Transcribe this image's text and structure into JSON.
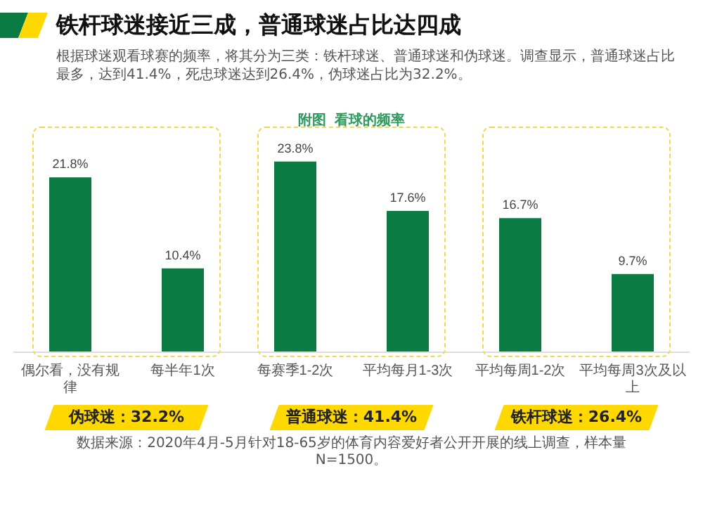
{
  "chart_data": {
    "type": "bar",
    "title": "附图  看球的频率",
    "categories": [
      "偶尔看，没有规律",
      "每半年1次",
      "每赛季1-2次",
      "平均每月1-3次",
      "平均每周1-2次",
      "平均每周3次及以上"
    ],
    "values": [
      21.8,
      10.4,
      23.8,
      17.6,
      16.7,
      9.7
    ],
    "value_labels": [
      "21.8%",
      "10.4%",
      "23.8%",
      "17.6%",
      "16.7%",
      "9.7%"
    ],
    "color": "#0a7c43",
    "annotations": [
      "铁杆球迷接近三成，普通球迷占比达四成",
      "根据球迷观看球赛的频率，将其分为三类：铁杆球迷、普通球迷和伪球迷。调查显示，普通球迷占比最多，达到41.4%，死忠球迷达到26.4%，伪球迷占比为32.2%。",
      "伪球迷：32.2%",
      "普通球迷：41.4%",
      "铁杆球迷：26.4%",
      "数据来源：2020年4月-5月针对18-65岁的体育内容爱好者公开开展的线上调查，样本量N=1500。"
    ]
  }
}
